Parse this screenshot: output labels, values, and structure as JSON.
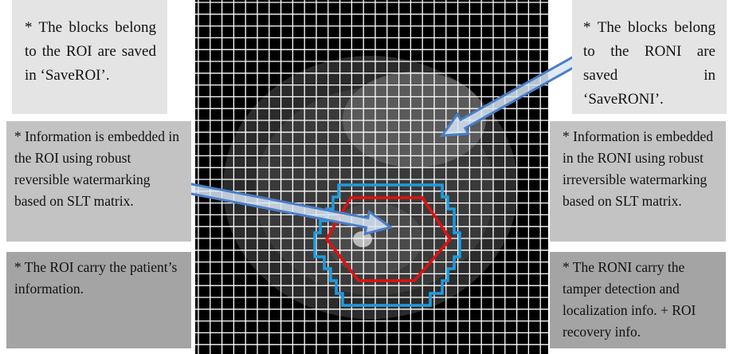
{
  "boxes": [
    {
      "text": "* The blocks belong to the ROI are saved in ‘SaveROI’."
    },
    {
      "text": "* Information is embedded in the ROI using robust reversible watermarking based on SLT matrix."
    },
    {
      "text": "* The ROI carry the patient’s information."
    },
    {
      "text": "* The blocks belong to the RONI are saved in ‘SaveRONI’."
    },
    {
      "text": "* Information is embedded in the RONI using robust irreversible watermarking based on SLT matrix."
    },
    {
      "text": "* The RONI carry the tamper detection and localization info. + ROI recovery info."
    }
  ]
}
